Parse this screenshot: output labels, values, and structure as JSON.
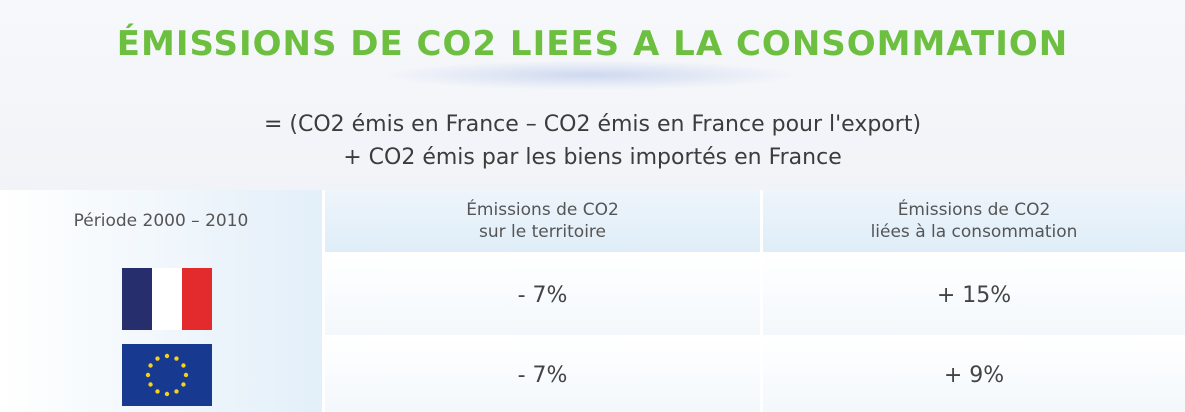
{
  "header": {
    "title": "ÉMISSIONS DE CO2 LIEES A LA CONSOMMATION"
  },
  "formula": {
    "line1": "= (CO2 émis en France – CO2 émis en France pour l'export)",
    "line2": "+ CO2 émis par les biens importés en France"
  },
  "table": {
    "header": [
      "Période 2000 – 2010",
      "Émissions de CO2\nsur le territoire",
      "Émissions de CO2\nliées à la consommation"
    ],
    "rows": [
      [
        "- 7%",
        "+ 15%"
      ],
      [
        "- 7%",
        "+ 9%"
      ]
    ]
  }
}
